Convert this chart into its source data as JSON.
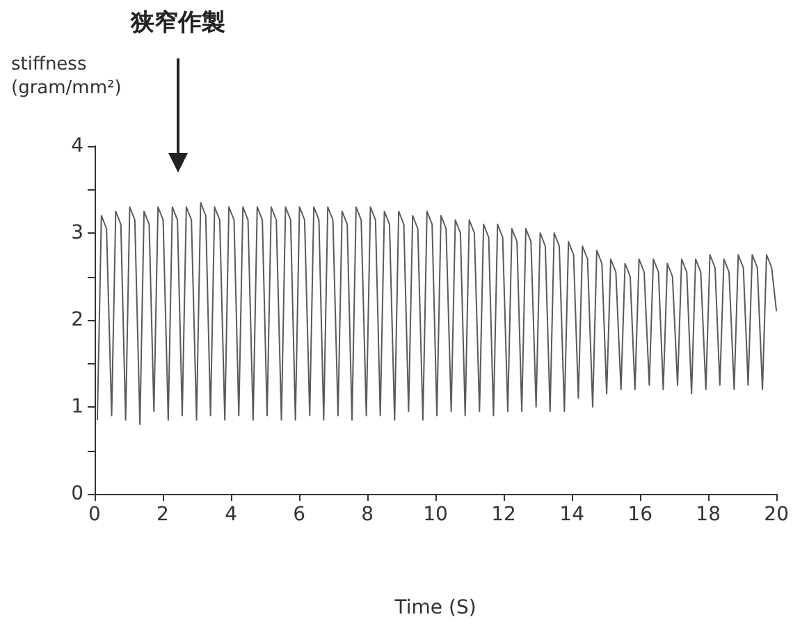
{
  "chart_data": {
    "type": "line",
    "xlabel": "Time (S)",
    "ylabel": "stiffness\n(gram/mm²)",
    "annotations": [
      "狭窄作製"
    ],
    "xlim": [
      0,
      20
    ],
    "xticks": [
      0,
      2,
      4,
      6,
      8,
      10,
      12,
      14,
      16,
      18,
      20
    ],
    "ylim": [
      0,
      4
    ],
    "yticks": [
      0,
      {
        "value": 0.5,
        "label": null
      },
      1,
      {
        "value": 1.5,
        "label": null
      },
      2,
      {
        "value": 2.5,
        "label": null
      },
      3,
      {
        "value": 3.5,
        "label": null
      },
      4
    ],
    "grid": false,
    "marker": "none",
    "series": [
      {
        "color": "#5a5a5a",
        "x": [
          0.08,
          0.2,
          0.35,
          0.5,
          0.62,
          0.77,
          0.91,
          1.03,
          1.18,
          1.33,
          1.45,
          1.6,
          1.74,
          1.86,
          2.01,
          2.16,
          2.28,
          2.43,
          2.57,
          2.69,
          2.84,
          2.99,
          3.11,
          3.26,
          3.4,
          3.52,
          3.67,
          3.82,
          3.94,
          4.09,
          4.23,
          4.35,
          4.5,
          4.65,
          4.77,
          4.92,
          5.06,
          5.18,
          5.33,
          5.48,
          5.6,
          5.75,
          5.89,
          6.01,
          6.16,
          6.31,
          6.43,
          6.58,
          6.72,
          6.84,
          6.99,
          7.14,
          7.26,
          7.41,
          7.55,
          7.67,
          7.82,
          7.97,
          8.09,
          8.24,
          8.38,
          8.5,
          8.65,
          8.8,
          8.92,
          9.07,
          9.21,
          9.33,
          9.48,
          9.63,
          9.75,
          9.9,
          10.04,
          10.16,
          10.31,
          10.46,
          10.58,
          10.73,
          10.87,
          10.99,
          11.14,
          11.29,
          11.41,
          11.56,
          11.7,
          11.82,
          11.97,
          12.12,
          12.24,
          12.39,
          12.53,
          12.65,
          12.8,
          12.95,
          13.07,
          13.22,
          13.36,
          13.48,
          13.63,
          13.78,
          13.9,
          14.05,
          14.19,
          14.31,
          14.46,
          14.61,
          14.73,
          14.88,
          15.02,
          15.14,
          15.29,
          15.44,
          15.56,
          15.71,
          15.85,
          15.97,
          16.12,
          16.27,
          16.39,
          16.54,
          16.68,
          16.8,
          16.95,
          17.1,
          17.22,
          17.37,
          17.51,
          17.63,
          17.78,
          17.93,
          18.05,
          18.2,
          18.34,
          18.46,
          18.61,
          18.76,
          18.88,
          19.03,
          19.17,
          19.29,
          19.44,
          19.59,
          19.71,
          19.86,
          20.0
        ],
        "values": [
          0.85,
          3.2,
          3.05,
          0.9,
          3.25,
          3.1,
          0.85,
          3.3,
          3.15,
          0.8,
          3.25,
          3.1,
          0.95,
          3.3,
          3.15,
          0.85,
          3.3,
          3.15,
          0.9,
          3.3,
          3.15,
          0.85,
          3.35,
          3.2,
          0.9,
          3.3,
          3.15,
          0.85,
          3.3,
          3.15,
          0.9,
          3.3,
          3.15,
          0.85,
          3.3,
          3.15,
          0.9,
          3.3,
          3.15,
          0.85,
          3.3,
          3.15,
          0.85,
          3.3,
          3.15,
          0.9,
          3.3,
          3.15,
          0.85,
          3.3,
          3.15,
          0.9,
          3.25,
          3.1,
          0.85,
          3.3,
          3.15,
          0.9,
          3.3,
          3.15,
          0.9,
          3.25,
          3.1,
          0.85,
          3.25,
          3.1,
          0.95,
          3.2,
          3.05,
          0.85,
          3.25,
          3.1,
          0.9,
          3.2,
          3.05,
          0.95,
          3.15,
          3.0,
          0.9,
          3.15,
          3.0,
          0.95,
          3.1,
          2.95,
          0.9,
          3.1,
          2.95,
          0.95,
          3.05,
          2.9,
          0.95,
          3.05,
          2.9,
          1.0,
          3.0,
          2.85,
          0.95,
          3.0,
          2.85,
          0.95,
          2.9,
          2.75,
          1.1,
          2.85,
          2.7,
          1.0,
          2.8,
          2.65,
          1.15,
          2.7,
          2.55,
          1.2,
          2.65,
          2.5,
          1.2,
          2.7,
          2.55,
          1.25,
          2.7,
          2.55,
          1.2,
          2.65,
          2.5,
          1.25,
          2.7,
          2.55,
          1.15,
          2.7,
          2.55,
          1.2,
          2.75,
          2.6,
          1.25,
          2.7,
          2.55,
          1.2,
          2.75,
          2.6,
          1.25,
          2.75,
          2.6,
          1.2,
          2.75,
          2.6,
          2.1
        ]
      }
    ]
  }
}
